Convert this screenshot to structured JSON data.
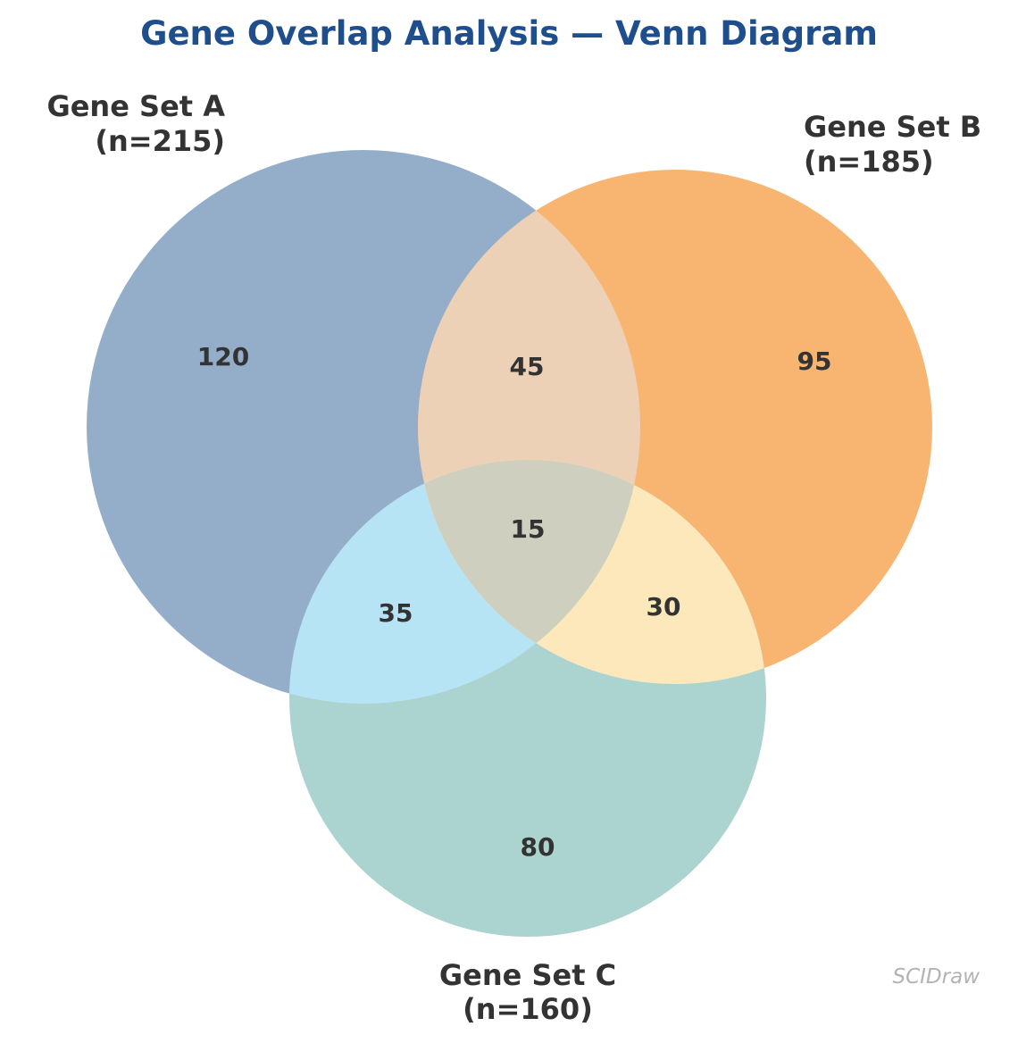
{
  "title": "Gene Overlap Analysis — Venn Diagram",
  "sets": {
    "a": {
      "name": "Gene Set A",
      "count": "(n=215)",
      "color": "#94aeca"
    },
    "b": {
      "name": "Gene Set B",
      "count": "(n=185)",
      "color": "#f8b572"
    },
    "c": {
      "name": "Gene Set C",
      "count": "(n=160)",
      "color": "#abd3cf"
    }
  },
  "regions": {
    "a_only": "120",
    "b_only": "95",
    "c_only": "80",
    "ab": "45",
    "ac": "35",
    "bc": "30",
    "abc": "15"
  },
  "region_colors": {
    "ab": "#edd1b7",
    "ac": "#b7e4f4",
    "bc": "#fce8bb",
    "abc": "#cfcfbf"
  },
  "watermark": "SCIDraw"
}
